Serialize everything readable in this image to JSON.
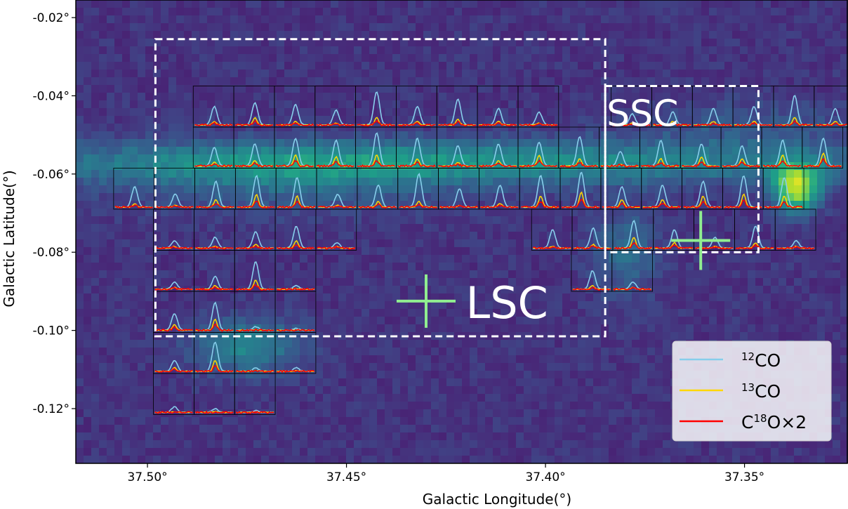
{
  "chart_data": {
    "type": "heatmap",
    "title": "",
    "xlabel": "Galactic Longitude(°)",
    "ylabel": "Galactic Latitude(°)",
    "xlim": [
      37.518,
      37.324
    ],
    "ylim": [
      -0.134,
      -0.0155
    ],
    "x_ticks": [
      37.5,
      37.45,
      37.4,
      37.35
    ],
    "x_tick_labels": [
      "37.50°",
      "37.45°",
      "37.40°",
      "37.35°"
    ],
    "y_ticks": [
      -0.02,
      -0.04,
      -0.06,
      -0.08,
      -0.1,
      -0.12
    ],
    "y_tick_labels": [
      "-0.02°",
      "-0.04°",
      "-0.06°",
      "-0.08°",
      "-0.10°",
      "-0.12°"
    ],
    "colormap": "viridis",
    "emission_peak": {
      "l": 37.337,
      "b": -0.0635
    },
    "regions": [
      {
        "label": "LSC",
        "box_l": [
          37.498,
          37.385
        ],
        "box_b": [
          -0.0255,
          -0.1015
        ],
        "center": {
          "l": 37.43,
          "b": -0.0925
        }
      },
      {
        "label": "SSC",
        "box_l": [
          37.385,
          37.3465
        ],
        "box_b": [
          -0.0375,
          -0.08
        ],
        "center": {
          "l": 37.361,
          "b": -0.077
        }
      }
    ],
    "spectra_grid": {
      "rows": [
        {
          "b_top": -0.0375,
          "b_bot": -0.048,
          "l_start": 37.4885,
          "n": 9
        },
        {
          "b_top": -0.0375,
          "b_bot": -0.048,
          "l_start": 37.3835,
          "n": 6
        },
        {
          "b_top": -0.048,
          "b_bot": -0.0585,
          "l_start": 37.4885,
          "n": 16
        },
        {
          "b_top": -0.0585,
          "b_bot": -0.069,
          "l_start": 37.5085,
          "n": 17
        },
        {
          "b_top": -0.069,
          "b_bot": -0.0795,
          "l_start": 37.4985,
          "n": 5
        },
        {
          "b_top": -0.069,
          "b_bot": -0.0795,
          "l_start": 37.4035,
          "n": 7
        },
        {
          "b_top": -0.0795,
          "b_bot": -0.09,
          "l_start": 37.4985,
          "n": 4
        },
        {
          "b_top": -0.0795,
          "b_bot": -0.09,
          "l_start": 37.3935,
          "n": 2
        },
        {
          "b_top": -0.09,
          "b_bot": -0.1005,
          "l_start": 37.4985,
          "n": 4
        },
        {
          "b_top": -0.1005,
          "b_bot": -0.111,
          "l_start": 37.4985,
          "n": 4
        },
        {
          "b_top": -0.111,
          "b_bot": -0.1215,
          "l_start": 37.4985,
          "n": 3
        }
      ],
      "cell_width_deg": 0.0102,
      "peaks_12CO": [
        0.5,
        0.6,
        0.55,
        0.4,
        0.9,
        0.5,
        0.7,
        0.45,
        0.35,
        0.3,
        0.35,
        0.45,
        0.5,
        0.8,
        0.45,
        0.5,
        0.6,
        0.75,
        0.7,
        0.9,
        0.75,
        0.55,
        0.6,
        0.65,
        0.8,
        0.4,
        0.7,
        0.6,
        0.55,
        0.7,
        0.75,
        0.55,
        0.35,
        0.7,
        0.85,
        0.8,
        0.35,
        0.6,
        0.9,
        0.5,
        0.6,
        0.85,
        0.95,
        0.55,
        0.6,
        0.7,
        0.85,
        0.8,
        0.2,
        0.3,
        0.45,
        0.6,
        0.15,
        0.5,
        0.55,
        0.75,
        0.5,
        0.3,
        0.6,
        0.2,
        0.2,
        0.35,
        0.75,
        0.1,
        0.5,
        0.2,
        0.45,
        0.75,
        0.1,
        0.05,
        0.3,
        0.8,
        0.1,
        0.1,
        0.15,
        0.1,
        0.05
      ],
      "peaks_13CO": [
        0.1,
        0.2,
        0.1,
        0.05,
        0.2,
        0.1,
        0.15,
        0.1,
        0.05,
        0.05,
        0.1,
        0.1,
        0.1,
        0.2,
        0.1,
        0.1,
        0.15,
        0.3,
        0.25,
        0.3,
        0.2,
        0.1,
        0.15,
        0.3,
        0.2,
        0.05,
        0.2,
        0.25,
        0.2,
        0.3,
        0.35,
        0.1,
        0.05,
        0.2,
        0.35,
        0.3,
        0.05,
        0.15,
        0.15,
        0.05,
        0.1,
        0.3,
        0.4,
        0.2,
        0.2,
        0.3,
        0.35,
        0.3,
        0.05,
        0.05,
        0.1,
        0.2,
        0.05,
        0.05,
        0.1,
        0.3,
        0.15,
        0.05,
        0.15,
        0.05,
        0.05,
        0.1,
        0.25,
        0.02,
        0.1,
        0.05,
        0.15,
        0.3,
        0.02,
        0.01,
        0.1,
        0.3,
        0.02,
        0.02,
        0.02,
        0.02,
        0.01
      ],
      "peaks_C18O": [
        0.05,
        0.1,
        0.05,
        0.03,
        0.1,
        0.05,
        0.08,
        0.05,
        0.03,
        0.03,
        0.05,
        0.05,
        0.05,
        0.1,
        0.05,
        0.05,
        0.08,
        0.15,
        0.12,
        0.15,
        0.1,
        0.05,
        0.08,
        0.15,
        0.1,
        0.03,
        0.1,
        0.12,
        0.1,
        0.15,
        0.18,
        0.05,
        0.03,
        0.1,
        0.18,
        0.15,
        0.03,
        0.08,
        0.08,
        0.03,
        0.05,
        0.15,
        0.2,
        0.1,
        0.1,
        0.15,
        0.18,
        0.15,
        0.03,
        0.03,
        0.05,
        0.1,
        0.03,
        0.03,
        0.05,
        0.15,
        0.08,
        0.03,
        0.08,
        0.03,
        0.03,
        0.05,
        0.12,
        0.01,
        0.05,
        0.03,
        0.08,
        0.15,
        0.01,
        0.005,
        0.05,
        0.15,
        0.01,
        0.01,
        0.01,
        0.01,
        0.005
      ]
    },
    "series": [
      {
        "name": "¹²CO",
        "color": "#87ceeb"
      },
      {
        "name": "¹³CO",
        "color": "#ffd700"
      },
      {
        "name": "C¹⁸O×2",
        "color": "#ff0000"
      }
    ],
    "legend_placement": "lower-right",
    "legend_items": [
      {
        "sup": "12",
        "rest": "CO"
      },
      {
        "sup": "13",
        "rest": "CO"
      },
      {
        "pre": "C",
        "sup": "18",
        "rest": "O×2"
      }
    ],
    "colors": {
      "region_box": "#ffffff",
      "center_marker": "#90ee90",
      "cell_border": "#000000"
    }
  }
}
